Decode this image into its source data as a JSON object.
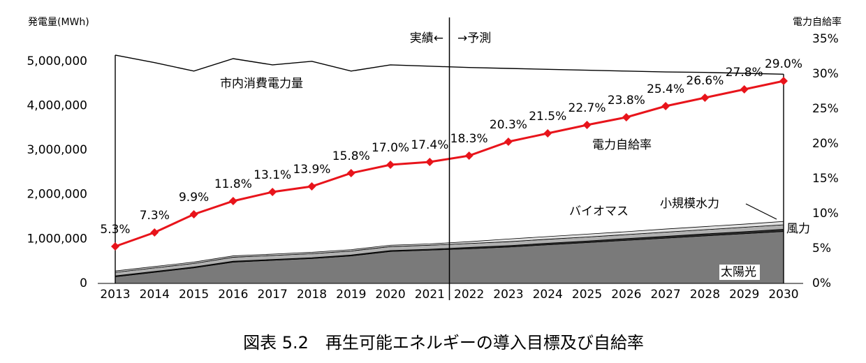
{
  "chart_data": {
    "type": "line",
    "title": "図表 5.2　再生可能エネルギーの導入目標及び自給率",
    "y_label": "発電量(MWh)",
    "y2_label": "電力自給率",
    "annotations": [
      "実績←",
      "→予測"
    ],
    "categories": [
      "2013",
      "2014",
      "2015",
      "2016",
      "2017",
      "2018",
      "2019",
      "2020",
      "2021",
      "2022",
      "2023",
      "2024",
      "2025",
      "2026",
      "2027",
      "2028",
      "2029",
      "2030"
    ],
    "ylim": [
      0,
      5500000
    ],
    "yticks": [
      0,
      {
        "value": 1000000,
        "label": "1,000,000"
      },
      {
        "value": 2000000,
        "label": "2,000,000"
      },
      {
        "value": 3000000,
        "label": "3,000,000"
      },
      {
        "value": 4000000,
        "label": "4,000,000"
      },
      {
        "value": 5000000,
        "label": "5,000,000"
      }
    ],
    "y2lim": [
      0,
      35
    ],
    "y2ticks": [
      {
        "value": 0,
        "label": "0%"
      },
      {
        "value": 5,
        "label": "5%"
      },
      {
        "value": 10,
        "label": "10%"
      },
      {
        "value": 15,
        "label": "15%"
      },
      {
        "value": 20,
        "label": "20%"
      },
      {
        "value": 25,
        "label": "25%"
      },
      {
        "value": 30,
        "label": "30%"
      },
      {
        "value": 35,
        "label": "35%"
      }
    ],
    "series": [
      {
        "name": "太陽光",
        "type": "area",
        "color": "#7a7a7a",
        "values": [
          150000,
          250000,
          350000,
          480000,
          520000,
          560000,
          620000,
          720000,
          750000,
          780000,
          820000,
          870000,
          920000,
          970000,
          1020000,
          1070000,
          1120000,
          1170000
        ]
      },
      {
        "name": "風力",
        "type": "area",
        "color": "#2e2e2e",
        "values": [
          20000,
          20000,
          20000,
          20000,
          20000,
          20000,
          20000,
          20000,
          20000,
          30000,
          30000,
          35000,
          35000,
          40000,
          40000,
          45000,
          45000,
          50000
        ]
      },
      {
        "name": "バイオマス",
        "type": "area",
        "color": "#b0b0b0",
        "values": [
          80000,
          80000,
          80000,
          90000,
          90000,
          90000,
          90000,
          90000,
          90000,
          90000,
          90000,
          90000,
          90000,
          90000,
          95000,
          95000,
          100000,
          100000
        ]
      },
      {
        "name": "小規模水力",
        "type": "area",
        "color": "#e2e2e2",
        "values": [
          30000,
          30000,
          30000,
          30000,
          30000,
          30000,
          30000,
          30000,
          30000,
          40000,
          60000,
          60000,
          65000,
          65000,
          70000,
          70000,
          70000,
          75000
        ]
      },
      {
        "name": "市内消費電力量",
        "type": "line",
        "color": "#000000",
        "values": [
          5140000,
          4970000,
          4780000,
          5060000,
          4920000,
          5000000,
          4780000,
          4920000,
          4890000,
          4860000,
          4840000,
          4820000,
          4800000,
          4780000,
          4760000,
          4750000,
          4730000,
          4710000
        ]
      },
      {
        "name": "電力自給率",
        "type": "line",
        "axis": "y2",
        "marker": "diamond",
        "color": "#e8141b",
        "values": [
          5.3,
          7.3,
          9.9,
          11.8,
          13.1,
          13.9,
          15.8,
          17.0,
          17.4,
          18.3,
          20.3,
          21.5,
          22.7,
          23.8,
          25.4,
          26.6,
          27.8,
          29.0
        ],
        "value_labels": [
          "5.3%",
          "7.3%",
          "9.9%",
          "11.8%",
          "13.1%",
          "13.9%",
          "15.8%",
          "17.0%",
          "17.4%",
          "18.3%",
          "20.3%",
          "21.5%",
          "22.7%",
          "23.8%",
          "25.4%",
          "26.6%",
          "27.8%",
          "29.0%"
        ]
      }
    ]
  }
}
